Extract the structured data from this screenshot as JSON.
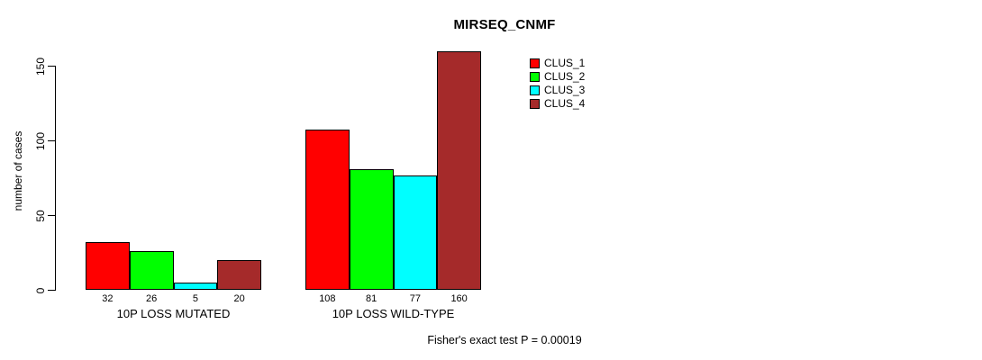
{
  "page": {
    "background": "#FFFFFF"
  },
  "chart_data": {
    "type": "bar",
    "title": "MIRSEQ_CNMF",
    "ylabel": "number of cases",
    "xlabel": "",
    "annotation": "Fisher's exact test P = 0.00019",
    "ylim": [
      0,
      160
    ],
    "yticks": [
      0,
      50,
      100,
      150
    ],
    "grid": false,
    "legend_position": "top-right-inside",
    "categories": [
      "10P LOSS MUTATED",
      "10P LOSS WILD-TYPE"
    ],
    "series": [
      {
        "name": "CLUS_1",
        "color": "#FF0000",
        "values": [
          32,
          108
        ]
      },
      {
        "name": "CLUS_2",
        "color": "#00FF00",
        "values": [
          26,
          81
        ]
      },
      {
        "name": "CLUS_3",
        "color": "#00FFFF",
        "values": [
          5,
          77
        ]
      },
      {
        "name": "CLUS_4",
        "color": "#A52A2A",
        "values": [
          20,
          160
        ]
      }
    ],
    "bar_value_labels": [
      [
        32,
        26,
        5,
        20
      ],
      [
        108,
        81,
        77,
        160
      ]
    ],
    "axis_color": "#000000"
  }
}
